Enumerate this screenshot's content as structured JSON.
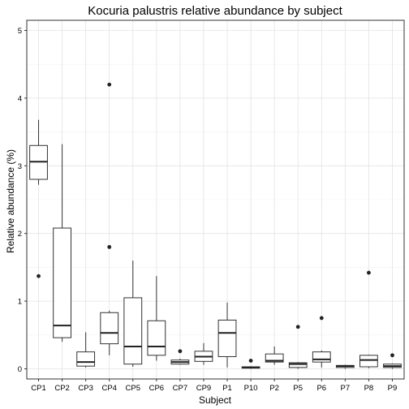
{
  "chart_data": {
    "type": "boxplot",
    "title": "Kocuria palustris relative abundance by subject",
    "xlabel": "Subject",
    "ylabel": "Relative abundance (%)",
    "ylim": [
      -0.15,
      5.15
    ],
    "yticks": [
      0,
      1,
      2,
      3,
      4,
      5
    ],
    "grid": true,
    "categories": [
      "CP1",
      "CP2",
      "CP3",
      "CP4",
      "CP5",
      "CP6",
      "CP7",
      "CP9",
      "P1",
      "P10",
      "P2",
      "P5",
      "P6",
      "P7",
      "P8",
      "P9"
    ],
    "boxes": [
      {
        "min": 2.72,
        "q1": 2.8,
        "median": 3.06,
        "q3": 3.3,
        "max": 3.68,
        "outliers": [
          1.37
        ]
      },
      {
        "min": 0.4,
        "q1": 0.46,
        "median": 0.64,
        "q3": 2.08,
        "max": 3.32,
        "outliers": []
      },
      {
        "min": 0.02,
        "q1": 0.04,
        "median": 0.1,
        "q3": 0.25,
        "max": 0.54,
        "outliers": []
      },
      {
        "min": 0.2,
        "q1": 0.37,
        "median": 0.53,
        "q3": 0.83,
        "max": 0.86,
        "outliers": [
          4.2,
          1.8
        ]
      },
      {
        "min": 0.03,
        "q1": 0.07,
        "median": 0.33,
        "q3": 1.05,
        "max": 1.6,
        "outliers": []
      },
      {
        "min": 0.12,
        "q1": 0.2,
        "median": 0.33,
        "q3": 0.71,
        "max": 1.37,
        "outliers": []
      },
      {
        "min": 0.06,
        "q1": 0.07,
        "median": 0.1,
        "q3": 0.13,
        "max": 0.15,
        "outliers": [
          0.26
        ]
      },
      {
        "min": 0.06,
        "q1": 0.11,
        "median": 0.18,
        "q3": 0.26,
        "max": 0.38,
        "outliers": []
      },
      {
        "min": 0.02,
        "q1": 0.18,
        "median": 0.53,
        "q3": 0.72,
        "max": 0.98,
        "outliers": []
      },
      {
        "min": 0.0,
        "q1": 0.01,
        "median": 0.02,
        "q3": 0.03,
        "max": 0.04,
        "outliers": [
          0.12
        ]
      },
      {
        "min": 0.06,
        "q1": 0.1,
        "median": 0.12,
        "q3": 0.22,
        "max": 0.33,
        "outliers": []
      },
      {
        "min": 0.0,
        "q1": 0.02,
        "median": 0.07,
        "q3": 0.09,
        "max": 0.1,
        "outliers": [
          0.62
        ]
      },
      {
        "min": 0.02,
        "q1": 0.1,
        "median": 0.14,
        "q3": 0.25,
        "max": 0.27,
        "outliers": [
          0.75
        ]
      },
      {
        "min": 0.0,
        "q1": 0.02,
        "median": 0.04,
        "q3": 0.05,
        "max": 0.06,
        "outliers": []
      },
      {
        "min": 0.01,
        "q1": 0.03,
        "median": 0.13,
        "q3": 0.2,
        "max": 0.21,
        "outliers": [
          1.42
        ]
      },
      {
        "min": 0.0,
        "q1": 0.02,
        "median": 0.04,
        "q3": 0.07,
        "max": 0.08,
        "outliers": [
          0.2
        ]
      }
    ]
  }
}
